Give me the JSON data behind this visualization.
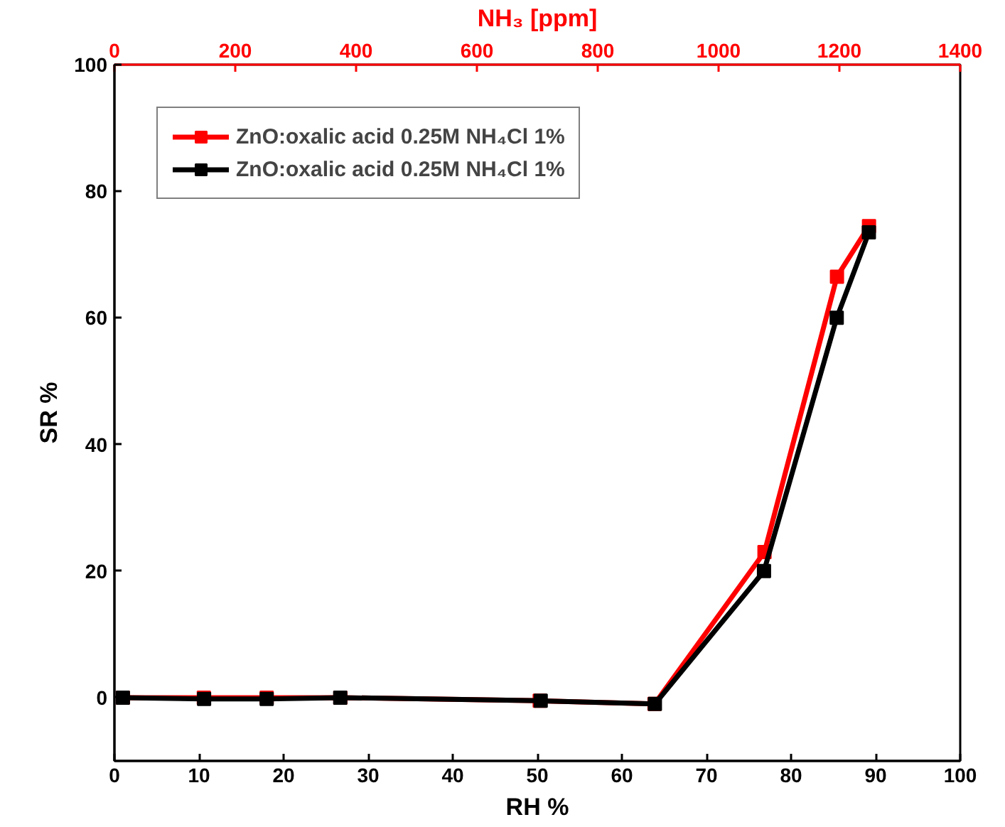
{
  "chart_data": {
    "type": "line",
    "xlabel": "RH %",
    "ylabel": "SR %",
    "x2label": "NH₃ [ppm]",
    "xlim": [
      0,
      100
    ],
    "xticks": [
      0,
      10,
      20,
      30,
      40,
      50,
      60,
      70,
      80,
      90,
      100
    ],
    "x2lim": [
      0,
      1400
    ],
    "x2ticks": [
      0,
      200,
      400,
      600,
      800,
      1000,
      1200,
      1400
    ],
    "ylim": [
      -10,
      100
    ],
    "yticks": [
      0,
      20,
      40,
      60,
      80,
      100
    ],
    "series": [
      {
        "name": "ZnO:oxalic acid 0.25M NH₄Cl 1%",
        "color": "#ff0000",
        "axis": "x2",
        "x": [
          14,
          148,
          252,
          374,
          704,
          894,
          1076,
          1196,
          1249
        ],
        "values": [
          0,
          0,
          0,
          0,
          -0.5,
          -1,
          23,
          66.5,
          74.5
        ]
      },
      {
        "name": "ZnO:oxalic acid 0.25M NH₄Cl 1%",
        "color": "#000000",
        "x": [
          1,
          10.6,
          18,
          26.7,
          50.4,
          63.9,
          76.8,
          85.4,
          89.2
        ],
        "values": [
          0,
          -0.2,
          -0.2,
          0,
          -0.5,
          -1,
          20,
          60,
          73.5
        ]
      }
    ],
    "marker": "square",
    "line_style": "solid",
    "grid": false,
    "legend": "top left"
  }
}
